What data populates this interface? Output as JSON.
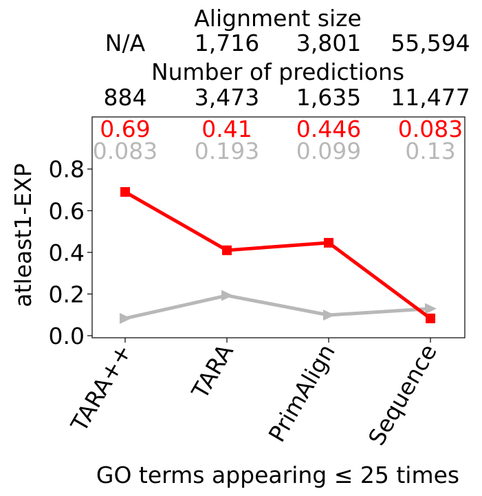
{
  "chart_data": {
    "type": "line",
    "categories": [
      "TARA++",
      "TARA",
      "PrimAlign",
      "Sequence"
    ],
    "series": [
      {
        "values": [
          0.69,
          0.41,
          0.446,
          0.083
        ],
        "color": "#ff0000",
        "marker": "square"
      },
      {
        "values": [
          0.083,
          0.193,
          0.099,
          0.13
        ],
        "color": "#b8b8b8",
        "marker": "triangle-right"
      }
    ],
    "value_labels": {
      "red": [
        "0.69",
        "0.41",
        "0.446",
        "0.083"
      ],
      "gray": [
        "0.083",
        "0.193",
        "0.099",
        "0.13"
      ]
    },
    "top_rows": [
      {
        "title": "Alignment size",
        "values": [
          "N/A",
          "1,716",
          "3,801",
          "55,594"
        ]
      },
      {
        "title": "Number of predictions",
        "values": [
          "884",
          "3,473",
          "1,635",
          "11,477"
        ]
      }
    ],
    "ylabel": "atleast1-EXP",
    "xlabel": "GO terms appearing ≤ 25 times",
    "yticks": [
      "0.0",
      "0.2",
      "0.4",
      "0.6",
      "0.8"
    ],
    "ylim": [
      -0.01,
      1.05
    ],
    "grid": false
  }
}
